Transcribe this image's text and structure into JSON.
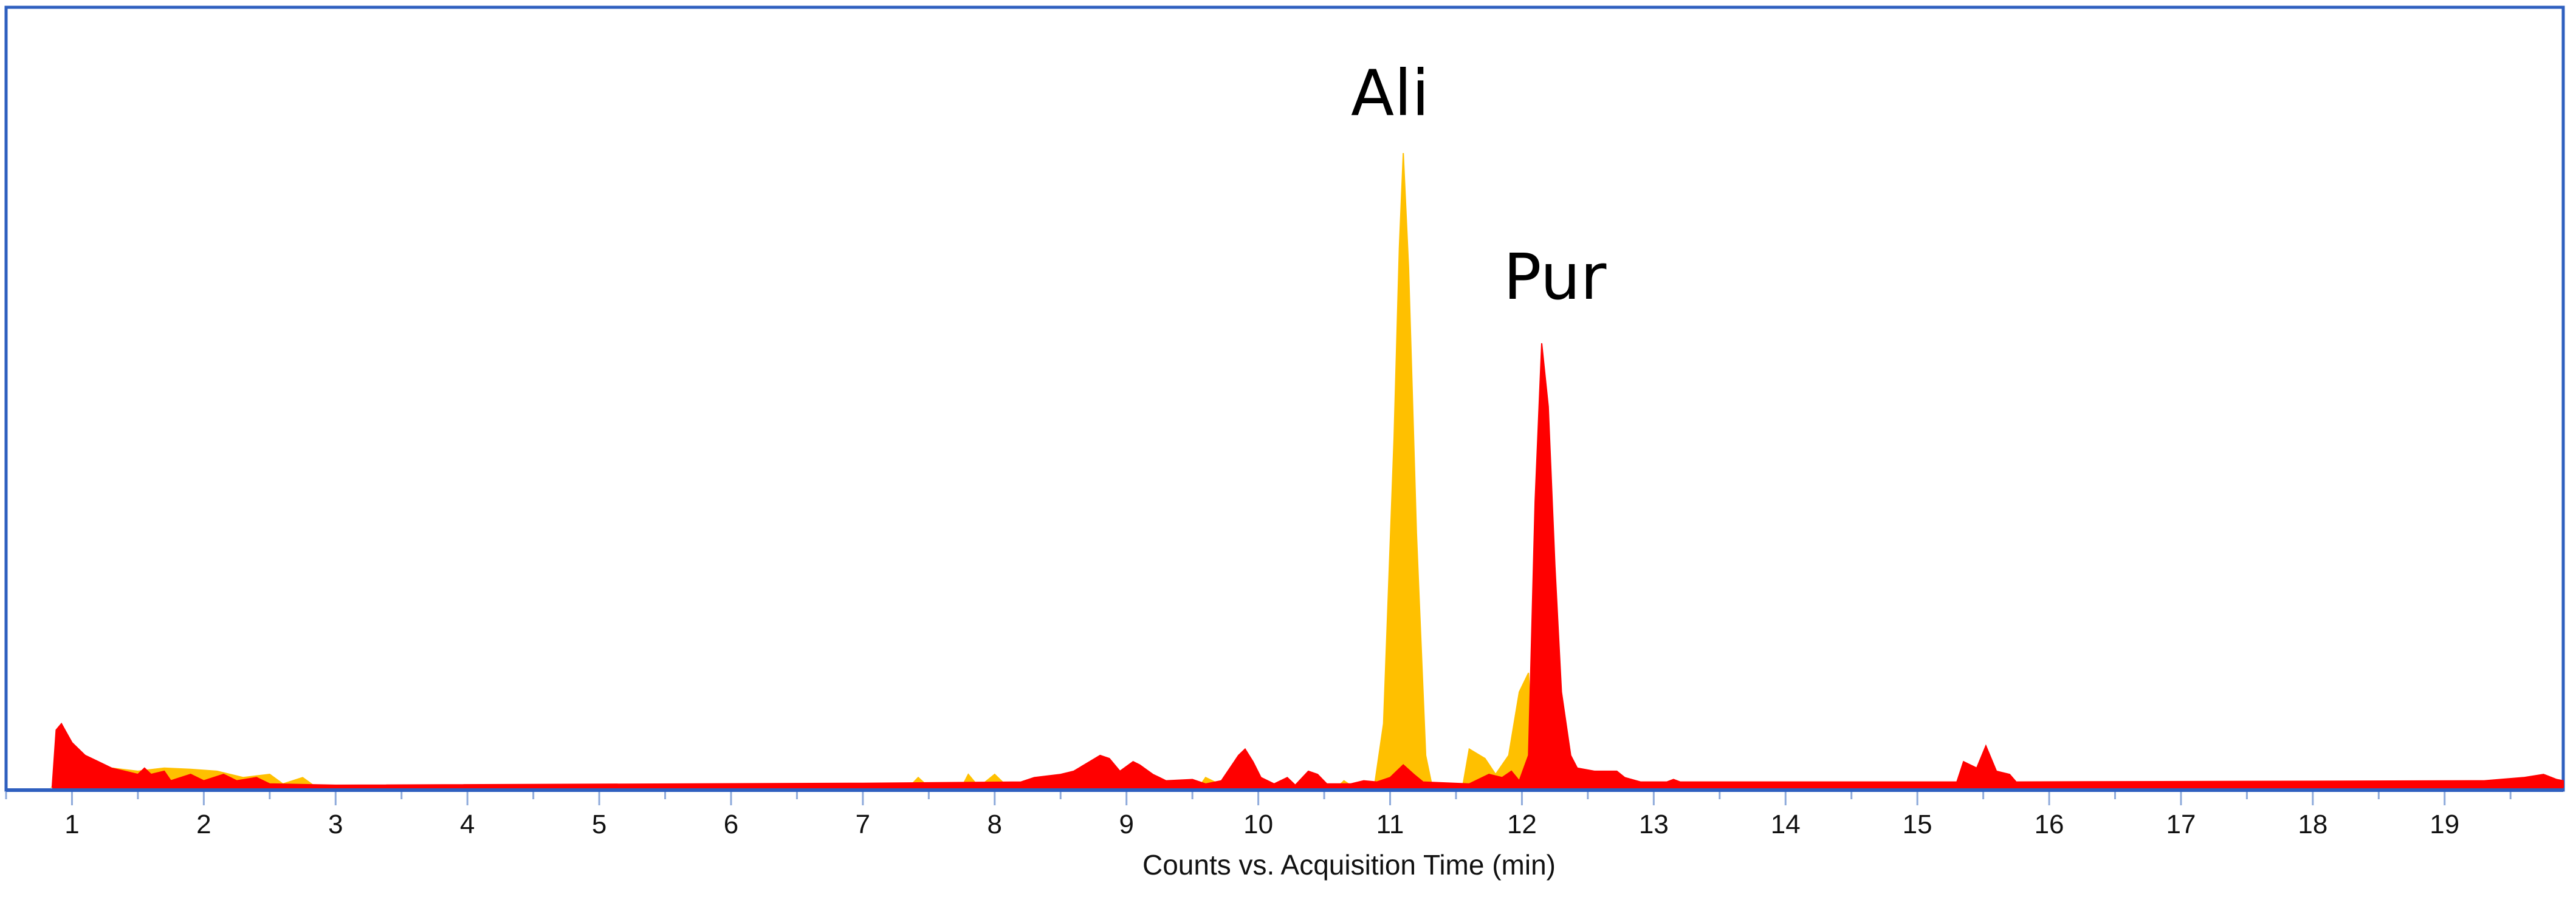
{
  "chart_data": {
    "type": "area",
    "title": "",
    "xlabel": "Counts vs. Acquisition Time (min)",
    "ylabel": "",
    "xlim": [
      0.5,
      19.9
    ],
    "ylim": [
      0,
      1.05
    ],
    "x_ticks": [
      "1",
      "2",
      "3",
      "4",
      "5",
      "6",
      "7",
      "8",
      "9",
      "10",
      "11",
      "12",
      "13",
      "14",
      "15",
      "16",
      "17",
      "18",
      "19"
    ],
    "grid": false,
    "legend": "none",
    "colors": {
      "frame": "#2e5fbf",
      "red_trace": "#ff0000",
      "yellow_trace": "#ffc000",
      "axis": "#8eaadb"
    },
    "annotations": [
      {
        "text": "Ali",
        "x": 11.0,
        "y": 1.06
      },
      {
        "text": "Pur",
        "x": 12.25,
        "y": 0.77
      }
    ],
    "series": [
      {
        "color": "#ffc000",
        "points": [
          [
            0.85,
            0
          ],
          [
            1.0,
            0.02
          ],
          [
            1.3,
            0.03
          ],
          [
            1.5,
            0.025
          ],
          [
            1.7,
            0.03
          ],
          [
            1.9,
            0.028
          ],
          [
            2.1,
            0.025
          ],
          [
            2.3,
            0.015
          ],
          [
            2.5,
            0.02
          ],
          [
            2.6,
            0.005
          ],
          [
            2.75,
            0.015
          ],
          [
            2.85,
            0
          ],
          [
            7.35,
            0
          ],
          [
            7.42,
            0.015
          ],
          [
            7.5,
            0
          ],
          [
            7.75,
            0
          ],
          [
            7.8,
            0.02
          ],
          [
            7.88,
            0
          ],
          [
            8.0,
            0.02
          ],
          [
            8.1,
            0
          ],
          [
            8.55,
            0
          ],
          [
            8.6,
            0.01
          ],
          [
            8.8,
            0
          ],
          [
            9.55,
            0
          ],
          [
            9.6,
            0.015
          ],
          [
            9.75,
            0
          ],
          [
            10.6,
            0
          ],
          [
            10.65,
            0.01
          ],
          [
            10.72,
            0
          ],
          [
            10.88,
            0
          ],
          [
            10.95,
            0.1
          ],
          [
            11.03,
            0.55
          ],
          [
            11.07,
            0.85
          ],
          [
            11.1,
            1.0
          ],
          [
            11.14,
            0.82
          ],
          [
            11.2,
            0.4
          ],
          [
            11.27,
            0.05
          ],
          [
            11.32,
            0
          ],
          [
            11.55,
            0
          ],
          [
            11.6,
            0.06
          ],
          [
            11.72,
            0.045
          ],
          [
            11.8,
            0.02
          ],
          [
            11.9,
            0.05
          ],
          [
            11.98,
            0.15
          ],
          [
            12.05,
            0.18
          ],
          [
            12.08,
            0.05
          ],
          [
            12.12,
            0.02
          ],
          [
            12.4,
            0.01
          ],
          [
            12.5,
            0
          ]
        ]
      },
      {
        "color": "#ff0000",
        "points": [
          [
            0.85,
            0
          ],
          [
            0.88,
            0.09
          ],
          [
            0.92,
            0.1
          ],
          [
            0.96,
            0.085
          ],
          [
            1.0,
            0.07
          ],
          [
            1.1,
            0.05
          ],
          [
            1.2,
            0.04
          ],
          [
            1.3,
            0.03
          ],
          [
            1.5,
            0.02
          ],
          [
            1.55,
            0.03
          ],
          [
            1.6,
            0.02
          ],
          [
            1.7,
            0.025
          ],
          [
            1.75,
            0.01
          ],
          [
            1.9,
            0.02
          ],
          [
            2.0,
            0.01
          ],
          [
            2.15,
            0.02
          ],
          [
            2.25,
            0.01
          ],
          [
            2.4,
            0.015
          ],
          [
            2.5,
            0.005
          ],
          [
            3.0,
            0.003
          ],
          [
            7.0,
            0.006
          ],
          [
            8.2,
            0.008
          ],
          [
            8.3,
            0.015
          ],
          [
            8.5,
            0.02
          ],
          [
            8.6,
            0.025
          ],
          [
            8.72,
            0.04
          ],
          [
            8.8,
            0.05
          ],
          [
            8.87,
            0.045
          ],
          [
            8.95,
            0.025
          ],
          [
            9.05,
            0.04
          ],
          [
            9.1,
            0.035
          ],
          [
            9.2,
            0.02
          ],
          [
            9.3,
            0.01
          ],
          [
            9.5,
            0.012
          ],
          [
            9.6,
            0.005
          ],
          [
            9.72,
            0.01
          ],
          [
            9.85,
            0.05
          ],
          [
            9.9,
            0.06
          ],
          [
            9.96,
            0.04
          ],
          [
            10.02,
            0.015
          ],
          [
            10.12,
            0.005
          ],
          [
            10.22,
            0.015
          ],
          [
            10.28,
            0.003
          ],
          [
            10.38,
            0.025
          ],
          [
            10.45,
            0.02
          ],
          [
            10.52,
            0.005
          ],
          [
            10.7,
            0.005
          ],
          [
            10.8,
            0.01
          ],
          [
            10.9,
            0.008
          ],
          [
            11.0,
            0.015
          ],
          [
            11.1,
            0.035
          ],
          [
            11.18,
            0.02
          ],
          [
            11.25,
            0.008
          ],
          [
            11.6,
            0.005
          ],
          [
            11.75,
            0.02
          ],
          [
            11.85,
            0.015
          ],
          [
            11.92,
            0.025
          ],
          [
            11.98,
            0.01
          ],
          [
            12.05,
            0.05
          ],
          [
            12.1,
            0.45
          ],
          [
            12.15,
            0.7
          ],
          [
            12.2,
            0.6
          ],
          [
            12.25,
            0.35
          ],
          [
            12.3,
            0.15
          ],
          [
            12.37,
            0.05
          ],
          [
            12.42,
            0.03
          ],
          [
            12.55,
            0.025
          ],
          [
            12.72,
            0.025
          ],
          [
            12.78,
            0.015
          ],
          [
            12.9,
            0.008
          ],
          [
            13.1,
            0.008
          ],
          [
            13.15,
            0.012
          ],
          [
            13.2,
            0.008
          ],
          [
            15.3,
            0.008
          ],
          [
            15.35,
            0.04
          ],
          [
            15.45,
            0.03
          ],
          [
            15.52,
            0.065
          ],
          [
            15.6,
            0.025
          ],
          [
            15.7,
            0.02
          ],
          [
            15.75,
            0.008
          ],
          [
            19.3,
            0.01
          ],
          [
            19.6,
            0.015
          ],
          [
            19.75,
            0.02
          ],
          [
            19.85,
            0.012
          ],
          [
            19.9,
            0.01
          ],
          [
            19.9,
            0
          ]
        ]
      }
    ]
  }
}
